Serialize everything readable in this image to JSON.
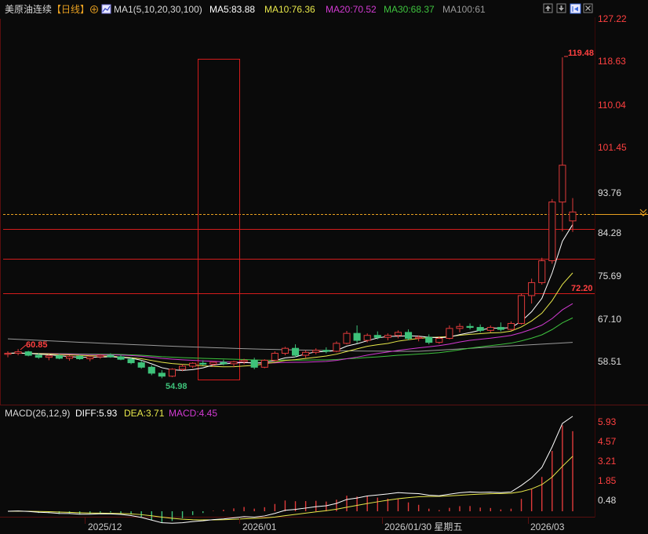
{
  "header": {
    "instrument": "美原油连续",
    "period": "【日线】",
    "ma_group_label": "MA1(5,10,20,30,100)",
    "ma5": "MA5:83.88",
    "ma10": "MA10:76.36",
    "ma20": "MA20:70.52",
    "ma30": "MA30:68.37",
    "ma100": "MA100:61",
    "icons": [
      "circle-plus-icon",
      "chart-settings-icon",
      "up-arrow-icon",
      "down-arrow-icon",
      "expand-icon",
      "close-icon"
    ]
  },
  "macd_header": {
    "name": "MACD(26,12,9)",
    "diff": "DIFF:5.93",
    "dea": "DEA:3.71",
    "macd": "MACD:4.45"
  },
  "price_axis": [
    "127.22",
    "118.63",
    "110.04",
    "101.45",
    "93.76",
    "84.28",
    "75.69",
    "67.10",
    "58.51"
  ],
  "macd_axis": [
    "5.93",
    "4.57",
    "3.21",
    "1.85",
    "0.48"
  ],
  "x_axis": [
    "2025/12",
    "2026/01",
    "2026/01/30 星期五",
    "2026/03"
  ],
  "annotations": {
    "high": "119.48",
    "low": "54.98",
    "left_high": "60.85",
    "line_level": "72.20"
  },
  "colors": {
    "up": "#e03a3a",
    "down": "#3ec27a",
    "ma5": "#ffffff",
    "ma10": "#e8e84a",
    "ma20": "#d23ad2",
    "ma30": "#3ec23e",
    "ma100": "#9a9a9a",
    "grid_red": "#8a1010",
    "current_price_line": "#e8a020",
    "text_label": "#cccccc"
  },
  "chart_data": {
    "type": "candlestick",
    "last_close_label": "93.76",
    "horizontal_lines": [
      84.28,
      78.0,
      72.2
    ],
    "candles_ohlc_sample": [
      [
        59.8,
        60.4,
        59.2,
        60.0
      ],
      [
        60.0,
        60.85,
        59.6,
        60.3
      ],
      [
        60.3,
        60.5,
        59.4,
        59.6
      ],
      [
        59.6,
        60.0,
        58.9,
        59.2
      ],
      [
        59.2,
        59.8,
        58.6,
        59.5
      ],
      [
        59.5,
        59.9,
        58.8,
        59.0
      ],
      [
        59.0,
        59.6,
        58.5,
        59.4
      ],
      [
        59.4,
        59.7,
        58.7,
        58.9
      ],
      [
        58.9,
        59.5,
        58.4,
        59.3
      ],
      [
        59.3,
        59.8,
        58.9,
        59.6
      ],
      [
        59.6,
        60.0,
        59.1,
        59.3
      ],
      [
        59.3,
        59.7,
        58.6,
        58.8
      ],
      [
        58.8,
        59.2,
        57.8,
        58.1
      ],
      [
        58.1,
        58.6,
        56.9,
        57.2
      ],
      [
        57.2,
        57.6,
        55.6,
        56.0
      ],
      [
        56.0,
        56.6,
        54.98,
        55.4
      ],
      [
        55.4,
        57.0,
        55.2,
        56.8
      ],
      [
        56.8,
        57.8,
        56.4,
        57.4
      ],
      [
        57.4,
        58.2,
        57.0,
        58.0
      ],
      [
        58.0,
        58.6,
        57.5,
        57.8
      ],
      [
        57.8,
        58.4,
        57.3,
        58.2
      ],
      [
        58.2,
        58.7,
        57.6,
        57.9
      ],
      [
        57.9,
        58.5,
        57.2,
        58.3
      ],
      [
        58.3,
        58.9,
        57.8,
        58.6
      ],
      [
        58.6,
        59.1,
        56.8,
        57.2
      ],
      [
        57.2,
        58.8,
        57.0,
        58.6
      ],
      [
        58.6,
        60.4,
        58.4,
        60.0
      ],
      [
        60.0,
        61.3,
        59.6,
        61.0
      ],
      [
        61.0,
        61.8,
        59.2,
        59.6
      ],
      [
        59.6,
        60.6,
        59.1,
        60.2
      ],
      [
        60.2,
        61.0,
        59.8,
        60.6
      ],
      [
        60.6,
        61.2,
        60.0,
        60.4
      ],
      [
        60.4,
        62.4,
        60.2,
        62.0
      ],
      [
        62.0,
        64.5,
        61.8,
        64.0
      ],
      [
        64.0,
        65.6,
        62.0,
        62.6
      ],
      [
        62.6,
        64.0,
        62.2,
        63.6
      ],
      [
        63.6,
        64.4,
        62.8,
        63.2
      ],
      [
        63.2,
        64.0,
        62.6,
        63.6
      ],
      [
        63.6,
        64.6,
        63.0,
        64.2
      ],
      [
        64.2,
        64.8,
        62.6,
        63.0
      ],
      [
        63.0,
        63.6,
        62.4,
        63.2
      ],
      [
        63.2,
        63.8,
        61.8,
        62.2
      ],
      [
        62.2,
        63.4,
        61.9,
        63.0
      ],
      [
        63.0,
        65.6,
        62.8,
        65.0
      ],
      [
        65.0,
        66.0,
        64.2,
        65.4
      ],
      [
        65.4,
        66.0,
        64.8,
        65.2
      ],
      [
        65.2,
        65.8,
        64.2,
        64.6
      ],
      [
        64.6,
        65.6,
        64.2,
        65.2
      ],
      [
        65.2,
        66.2,
        64.4,
        64.8
      ],
      [
        64.8,
        66.4,
        64.6,
        66.0
      ],
      [
        66.0,
        72.0,
        65.8,
        71.6
      ],
      [
        71.6,
        75.0,
        70.0,
        74.2
      ],
      [
        74.2,
        79.2,
        73.8,
        78.6
      ],
      [
        78.6,
        91.0,
        78.0,
        90.4
      ],
      [
        90.4,
        119.48,
        84.5,
        97.8
      ],
      [
        86.6,
        91.2,
        84.4,
        88.4
      ]
    ]
  }
}
